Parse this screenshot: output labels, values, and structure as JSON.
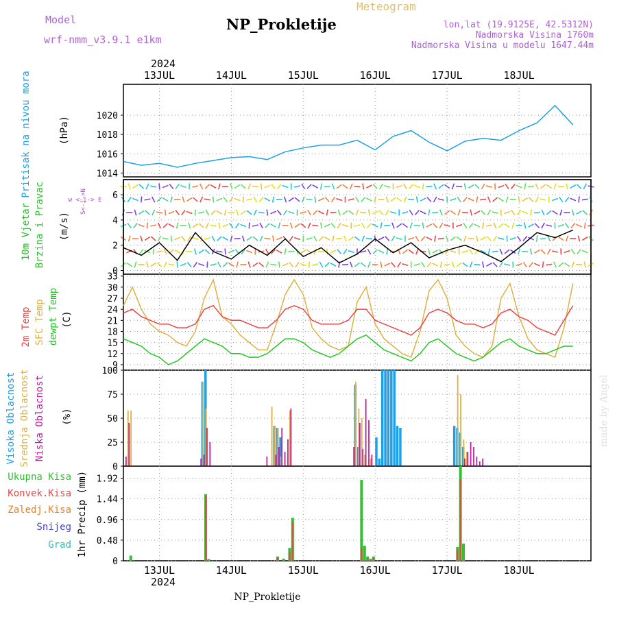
{
  "header": {
    "model_label": "Model",
    "model_name": "wrf-nmm_v3.9.1  e1km",
    "title": "NP_Prokletije",
    "subtitle": "Meteogram",
    "coords": "lon,lat (19.9125E, 42.5312N)",
    "altitude": "Nadmorska Visina 1760m",
    "model_altitude": "Nadmorska Visina u modelu 1647.44m",
    "footer": "NP_Prokletije",
    "watermark": "made by Angel",
    "year": "2024"
  },
  "colors": {
    "pressure": "#1ea0e8",
    "temp2m": "#e84848",
    "sfc": "#e0b040",
    "dewpt": "#20c820",
    "high_cloud": "#1ea0e8",
    "mid_cloud": "#e0b040",
    "low_cloud": "#c020a0",
    "total_precip": "#30c030",
    "conv_precip": "#e84848",
    "frz_precip": "#f08020",
    "snow": "#4040e0",
    "hail": "#30c0b0",
    "wind_axis": "#b040e0"
  },
  "days": [
    "13JUL",
    "14JUL",
    "15JUL",
    "16JUL",
    "17JUL",
    "18JUL"
  ],
  "panels": {
    "pressure": {
      "label": "Pritisak na nivou mora",
      "unit": "(hPa)",
      "ticks": [
        "1014",
        "1016",
        "1018",
        "1020"
      ]
    },
    "wind": {
      "label1": "10m Vjetar",
      "label2": "Brzina i Pravac",
      "unit": "(m/s)",
      "ticks": [
        "0",
        "2",
        "4",
        "6"
      ],
      "compass": "w <-|-> E",
      "compass2": "S<-|->N"
    },
    "temp": {
      "label1": "2m Temp",
      "label2": "SFC Temp",
      "label3": "dewpt Temp",
      "unit": "(C)",
      "ticks": [
        "9",
        "12",
        "15",
        "18",
        "21",
        "24",
        "27",
        "30",
        "33"
      ]
    },
    "cloud": {
      "label1": "Visoka Oblacnost",
      "label2": "Srednja Oblacnost",
      "label3": "Niska Oblacnost",
      "unit": "(%)",
      "ticks": [
        "0",
        "25",
        "50",
        "75",
        "100"
      ]
    },
    "precip": {
      "unit": "1hr Precip (mm)",
      "ticks": [
        "0",
        "0.48",
        "0.96",
        "1.44",
        "1.92"
      ],
      "legend": [
        "Ukupna Kisa",
        "Konvek.Kisa",
        "Zaledj.Kisa",
        "Snijeg",
        "Grad"
      ]
    }
  },
  "chart_data": [
    {
      "type": "line",
      "title": "Pritisak na nivou mora",
      "ylabel": "(hPa)",
      "ylim": [
        1013.6,
        1023.2
      ],
      "x_hours": [
        0,
        6,
        12,
        18,
        24,
        30,
        36,
        42,
        48,
        54,
        60,
        66,
        72,
        78,
        84,
        90,
        96,
        102,
        108,
        114,
        120,
        126,
        132,
        138,
        144,
        150
      ],
      "series": [
        {
          "name": "Pritisak na nivou mora",
          "values": [
            1015.2,
            1014.8,
            1015.0,
            1014.6,
            1015.0,
            1015.3,
            1015.6,
            1015.7,
            1015.4,
            1016.2,
            1016.6,
            1016.9,
            1016.9,
            1017.4,
            1016.4,
            1017.8,
            1018.4,
            1017.2,
            1016.3,
            1017.3,
            1017.6,
            1017.4,
            1018.4,
            1019.2,
            1021.0,
            1019.0
          ]
        }
      ]
    },
    {
      "type": "line",
      "title": "10m Vjetar Brzina i Pravac",
      "ylabel": "(m/s)",
      "ylim": [
        -0.3,
        7.2
      ],
      "x_hours": [
        0,
        6,
        12,
        18,
        24,
        30,
        36,
        42,
        48,
        54,
        60,
        66,
        72,
        78,
        84,
        90,
        96,
        102,
        108,
        114,
        120,
        126,
        132,
        138,
        144,
        150
      ],
      "series": [
        {
          "name": "Brzina",
          "values": [
            1.8,
            1.2,
            2.2,
            0.8,
            3.0,
            1.5,
            0.9,
            2.0,
            1.2,
            2.5,
            1.1,
            1.8,
            0.6,
            1.3,
            2.5,
            1.4,
            2.2,
            1.0,
            1.6,
            2.0,
            1.4,
            0.7,
            1.8,
            3.0,
            2.6,
            3.2
          ]
        }
      ]
    },
    {
      "type": "line",
      "title": "2m Temp / SFC Temp / dewpt Temp",
      "ylabel": "(C)",
      "ylim": [
        7.5,
        33.5
      ],
      "x_hours": [
        0,
        3,
        6,
        9,
        12,
        15,
        18,
        21,
        24,
        27,
        30,
        33,
        36,
        39,
        42,
        45,
        48,
        51,
        54,
        57,
        60,
        63,
        66,
        69,
        72,
        75,
        78,
        81,
        84,
        87,
        90,
        93,
        96,
        99,
        102,
        105,
        108,
        111,
        114,
        117,
        120,
        123,
        126,
        129,
        132,
        135,
        138,
        141,
        144,
        147,
        150
      ],
      "series": [
        {
          "name": "2m Temp",
          "values": [
            23,
            24,
            22,
            21,
            20,
            20,
            19,
            19,
            20,
            24,
            25,
            22,
            21,
            21,
            20,
            19,
            19,
            21,
            24,
            25,
            24,
            21,
            20,
            20,
            20,
            21,
            24,
            24,
            21,
            20,
            19,
            18,
            17,
            19,
            23,
            24,
            23,
            21,
            20,
            20,
            19,
            20,
            23,
            24,
            22,
            21,
            19,
            18,
            17,
            21,
            25
          ]
        },
        {
          "name": "SFC Temp",
          "values": [
            25,
            30,
            24,
            20,
            18,
            17,
            15,
            14,
            18,
            27,
            32,
            22,
            20,
            17,
            15,
            13,
            13,
            20,
            28,
            32,
            28,
            19,
            16,
            14,
            13,
            14,
            26,
            30,
            20,
            16,
            14,
            12,
            11,
            18,
            29,
            32,
            27,
            17,
            14,
            12,
            11,
            14,
            27,
            31,
            22,
            16,
            13,
            12,
            11,
            19,
            31
          ]
        },
        {
          "name": "dewpt Temp",
          "values": [
            16,
            15,
            14,
            12,
            11,
            9,
            10,
            12,
            14,
            16,
            15,
            14,
            12,
            12,
            11,
            11,
            12,
            14,
            16,
            16,
            15,
            13,
            12,
            11,
            12,
            14,
            16,
            17,
            15,
            13,
            12,
            11,
            10,
            12,
            15,
            16,
            14,
            12,
            11,
            10,
            11,
            13,
            15,
            16,
            14,
            13,
            12,
            12,
            13,
            14,
            14
          ]
        }
      ]
    },
    {
      "type": "bar",
      "title": "Visoka / Srednja / Niska Oblacnost",
      "ylabel": "(%)",
      "ylim": [
        0,
        100
      ],
      "series": [
        {
          "name": "Visoka Oblacnost",
          "x_hours": [
            26,
            27,
            50,
            51,
            52,
            77,
            78,
            84,
            85,
            86,
            87,
            88,
            89,
            90,
            91,
            92,
            110,
            111,
            112,
            113
          ],
          "values": [
            88,
            100,
            42,
            40,
            30,
            85,
            20,
            30,
            8,
            100,
            100,
            100,
            100,
            100,
            42,
            40,
            42,
            40,
            35,
            20
          ]
        },
        {
          "name": "Srednja Oblacnost",
          "x_hours": [
            1,
            2,
            26,
            27,
            49,
            50,
            51,
            52,
            55,
            77,
            78,
            79,
            80,
            82,
            111,
            112,
            113,
            114
          ],
          "values": [
            58,
            58,
            88,
            60,
            62,
            42,
            40,
            10,
            58,
            88,
            60,
            50,
            12,
            8,
            95,
            75,
            28,
            15
          ]
        },
        {
          "name": "Niska Oblacnost",
          "x_hours": [
            0,
            1,
            25,
            26,
            27,
            28,
            47,
            50,
            51,
            52,
            53,
            54,
            55,
            76,
            78,
            79,
            80,
            81,
            82,
            113,
            114,
            115,
            116,
            117,
            118,
            119
          ],
          "values": [
            10,
            45,
            8,
            12,
            40,
            25,
            10,
            12,
            20,
            40,
            15,
            28,
            60,
            20,
            45,
            18,
            70,
            48,
            12,
            8,
            15,
            25,
            20,
            10,
            5,
            8
          ]
        }
      ]
    },
    {
      "type": "bar",
      "title": "1hr Precip",
      "ylabel": "1hr Precip (mm)",
      "ylim": [
        0,
        2.2
      ],
      "series": [
        {
          "name": "Ukupna Kisa",
          "x_hours": [
            2,
            27,
            28,
            51,
            53,
            55,
            56,
            79,
            80,
            81,
            82,
            83,
            111,
            112,
            113
          ],
          "values": [
            0.12,
            1.55,
            0.04,
            0.1,
            0.05,
            0.3,
            1.0,
            1.88,
            0.35,
            0.1,
            0.05,
            0.1,
            0.32,
            2.2,
            0.4
          ]
        },
        {
          "name": "Konvek.Kisa",
          "x_hours": [
            27,
            51,
            55,
            56,
            79,
            81,
            83,
            111,
            112
          ],
          "values": [
            1.5,
            0.08,
            0.2,
            0.9,
            0.3,
            0.05,
            0.08,
            0.25,
            1.9
          ]
        }
      ]
    }
  ]
}
